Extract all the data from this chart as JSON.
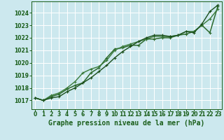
{
  "title": "Graphe pression niveau de la mer (hPa)",
  "x_ticks": [
    0,
    1,
    2,
    3,
    4,
    5,
    6,
    7,
    8,
    9,
    10,
    11,
    12,
    13,
    14,
    15,
    16,
    17,
    18,
    19,
    20,
    21,
    22,
    23
  ],
  "y_ticks": [
    1017,
    1018,
    1019,
    1020,
    1021,
    1022,
    1023,
    1024
  ],
  "ylim": [
    1016.3,
    1024.9
  ],
  "xlim": [
    -0.5,
    23.5
  ],
  "series": [
    {
      "x": [
        0,
        1,
        2,
        3,
        4,
        5,
        6,
        7,
        8,
        9,
        10,
        11,
        12,
        13,
        14,
        15,
        16,
        17,
        18,
        19,
        20,
        21,
        22,
        23
      ],
      "y": [
        1017.2,
        1017.0,
        1017.3,
        1017.5,
        1017.9,
        1018.2,
        1018.4,
        1019.2,
        1019.6,
        1020.4,
        1021.1,
        1021.2,
        1021.4,
        1021.4,
        1021.9,
        1021.9,
        1022.0,
        1022.0,
        1022.2,
        1022.3,
        1022.5,
        1023.0,
        1022.4,
        1024.5
      ],
      "color": "#2d6a2d",
      "linewidth": 1.1,
      "marker": "+"
    },
    {
      "x": [
        0,
        1,
        2,
        3,
        4,
        5,
        6,
        7,
        8,
        9,
        10,
        11,
        12,
        13,
        14,
        15,
        16,
        17,
        18,
        19,
        20,
        21,
        22,
        23
      ],
      "y": [
        1017.2,
        1017.0,
        1017.4,
        1017.6,
        1018.0,
        1018.5,
        1019.2,
        1019.5,
        1019.7,
        1020.2,
        1021.0,
        1021.3,
        1021.5,
        1021.7,
        1021.9,
        1022.1,
        1022.1,
        1022.1,
        1022.2,
        1022.5,
        1022.5,
        1023.0,
        1023.5,
        1024.3
      ],
      "color": "#3a7a3a",
      "linewidth": 1.0,
      "marker": "+"
    },
    {
      "x": [
        0,
        1,
        2,
        3,
        4,
        5,
        6,
        7,
        8,
        9,
        10,
        11,
        12,
        13,
        14,
        15,
        16,
        17,
        18,
        19,
        20,
        21,
        22,
        23
      ],
      "y": [
        1017.2,
        1017.0,
        1017.2,
        1017.3,
        1017.7,
        1018.0,
        1018.4,
        1018.8,
        1019.3,
        1019.8,
        1020.4,
        1020.9,
        1021.3,
        1021.7,
        1022.0,
        1022.2,
        1022.2,
        1022.1,
        1022.2,
        1022.5,
        1022.4,
        1023.1,
        1024.1,
        1024.6
      ],
      "color": "#1a4e1a",
      "linewidth": 1.0,
      "marker": "+"
    }
  ],
  "bg_color": "#cce8ee",
  "grid_color": "#b8d8e0",
  "label_color": "#1a5e1a",
  "title_color": "#1a5e1a",
  "title_fontsize": 7.0,
  "tick_fontsize": 5.5
}
